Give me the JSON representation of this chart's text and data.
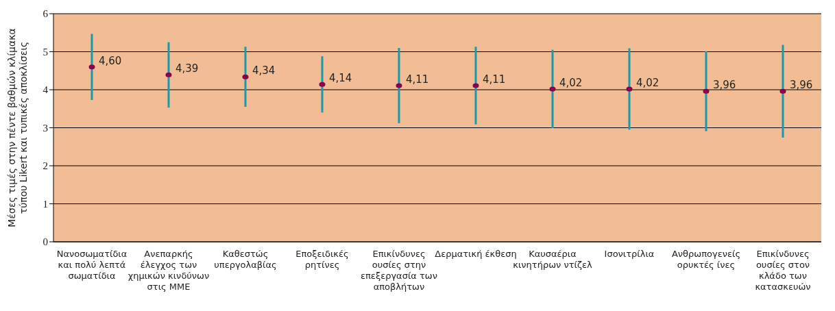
{
  "chart_data": {
    "type": "scatter",
    "ylabel": "Μέσες τιμές στην πέντε βαθμών κλίμακα τύπου Likert και τυπικές αποκλίσεις",
    "categories": [
      "Νανοσωματίδια και πολύ λεπτά σωματίδια",
      "Ανεπαρκής έλεγχος των χημικών κινδύνων στις ΜΜΕ",
      "Καθεστώς υπεργολαβίας",
      "Εποξειδικές ρητίνες",
      "Επικίνδυνες ουσίες στην επεξεργασία των αποβλήτων",
      "Δερματική έκθεση",
      "Καυσαέρια κινητήρων ντίζελ",
      "Ισονιτρίλια",
      "Ανθρωπογενείς ορυκτές ίνες",
      "Επικίνδυνες ουσίες στον κλάδο των κατασκευών"
    ],
    "values": [
      4.6,
      4.39,
      4.34,
      4.14,
      4.11,
      4.11,
      4.02,
      4.02,
      3.96,
      3.96
    ],
    "value_labels": [
      "4,60",
      "4,39",
      "4,34",
      "4,14",
      "4,11",
      "4,11",
      "4,02",
      "4,02",
      "3,96",
      "3,96"
    ],
    "errors": [
      0.87,
      0.86,
      0.79,
      0.74,
      0.99,
      1.02,
      1.03,
      1.07,
      1.05,
      1.22
    ],
    "color": "#8b004b",
    "ylim": [
      0,
      6
    ],
    "yticks": [
      0,
      1,
      2,
      3,
      4,
      5,
      6
    ],
    "grid": "y",
    "marker": "circle"
  }
}
